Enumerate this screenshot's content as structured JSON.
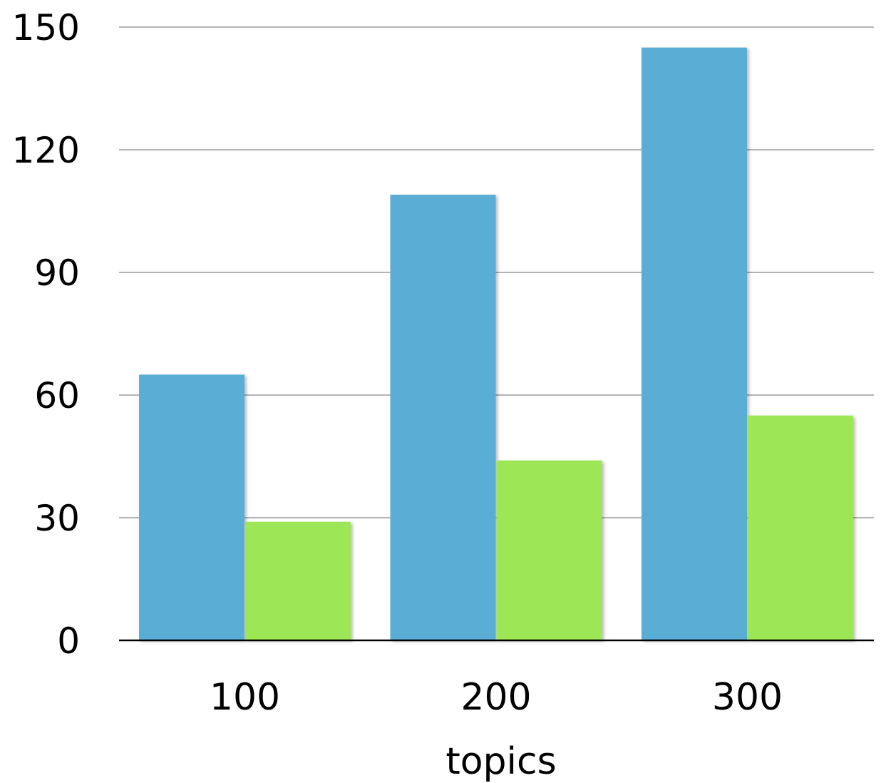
{
  "chart_data": {
    "type": "bar",
    "title": "",
    "xlabel": "topics",
    "ylabel": "",
    "categories": [
      "100",
      "200",
      "300"
    ],
    "series": [
      {
        "color": "#5aadd4",
        "values": [
          65,
          109,
          145
        ]
      },
      {
        "color": "#9de756",
        "values": [
          29,
          44,
          55
        ]
      }
    ],
    "ylim": [
      0,
      150
    ],
    "yticks": [
      0,
      30,
      60,
      90,
      120,
      150
    ],
    "ytick_labels": [
      "0",
      "30",
      "60",
      "90",
      "120",
      "150"
    ],
    "grid": true,
    "legend": "none",
    "gridline_color": "#b3b3b3",
    "axis_color": "#000000"
  }
}
